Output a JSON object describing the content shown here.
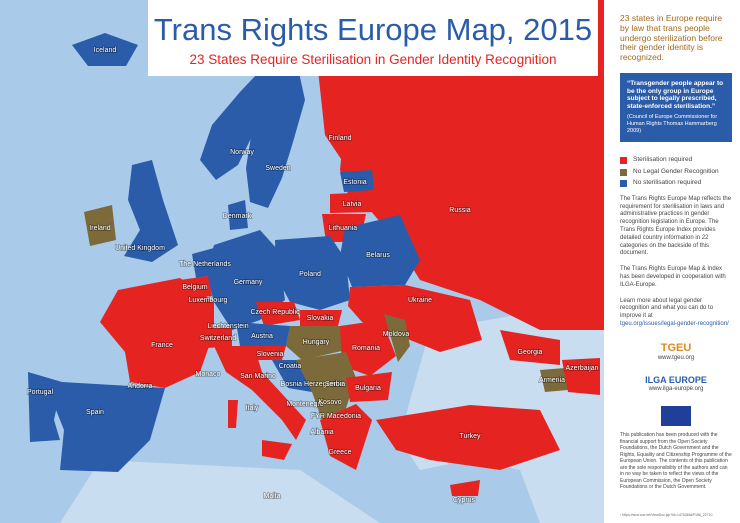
{
  "header": {
    "title": "Trans Rights Europe Map, 2015",
    "subtitle": "23 States Require Sterilisation in Gender Identity Recognition"
  },
  "sidebar": {
    "intro": "23 states in Europe require by law that trans people undergo sterilization before their gender identity is recognized.",
    "quote": {
      "text": "“Transgender people appear to be the only group in Europe subject to legally prescribed, state-enforced sterilisation.”",
      "source": "(Council of Europe Commissioner for Human Rights Thomas Hammarberg 2009)"
    },
    "legend": [
      {
        "label": "Sterilisation required",
        "color": "#e52421"
      },
      {
        "label": "No Legal Gender Recognition",
        "color": "#7d6a3a"
      },
      {
        "label": "No sterilisation required",
        "color": "#2a5caa"
      }
    ],
    "paragraphs": [
      "The Trans Rights Europe Map reflects the requirement for sterilisation in laws and administrative practices in gender recognition legislation in Europe. The Trans Rights Europe Index provides detailed country information in 22 categories on the backside of this document.",
      "The Trans Rights Europe Map & Index has been developed in cooperation with ILGA-Europe.",
      "Learn more about legal gender recognition and what you can do to improve it at",
      "tgeu.org/issues/legal-gender-recognition/"
    ],
    "logos": [
      {
        "name": "TGEU",
        "url": "www.tgeu.org"
      },
      {
        "name": "ILGA EUROPE",
        "url": "www.ilga-europe.org"
      }
    ],
    "disclaimer": "This publication has been produced with the financial support from the Open Society Foundations, the Dutch Government and the Rights, Equality and Citizenship Programme of the European Union. The contents of this publication are the sole responsibility of the authors and can in no way be taken to reflect the views of the European Commission, the Open Society Foundations or the Dutch Government.",
    "footnote": "¹ https://wcd.coe.int/ViewDoc.jsp?id=1476365#P186_22710"
  },
  "map": {
    "labels": [
      "Iceland",
      "Norway",
      "Sweden",
      "Finland",
      "Estonia",
      "Latvia",
      "Lithuania",
      "Russia",
      "Denmark",
      "Ireland",
      "United Kingdom",
      "The Netherlands",
      "Belgium",
      "Luxembourg",
      "Germany",
      "Poland",
      "Belarus",
      "Czech Republic",
      "Slovakia",
      "Ukraine",
      "Moldova",
      "France",
      "Switzerland",
      "Liechtenstein",
      "Austria",
      "Hungary",
      "Slovenia",
      "Croatia",
      "Romania",
      "Bosnia Herzegovina",
      "Serbia",
      "Montenegro",
      "Kosovo",
      "FYR Macedonia",
      "Albania",
      "Bulgaria",
      "Greece",
      "San Marino",
      "Monaco",
      "Andorra",
      "Portugal",
      "Spain",
      "Italy",
      "Malta",
      "Turkey",
      "Cyprus",
      "Georgia",
      "Armenia",
      "Azerbaijan"
    ]
  }
}
